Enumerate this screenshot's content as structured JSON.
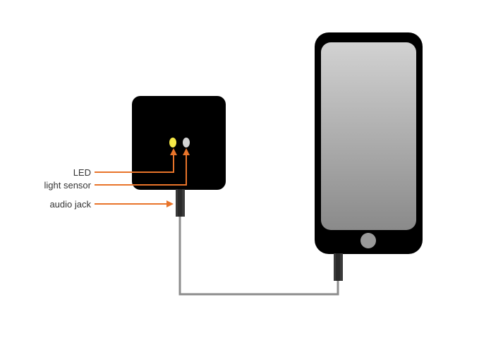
{
  "labels": {
    "led": "LED",
    "light_sensor": "light sensor",
    "audio_jack": "audio jack"
  },
  "colors": {
    "device_body": "#000000",
    "led": "#f7e948",
    "light_sensor": "#d3d3d3",
    "arrow": "#e8742a",
    "cable": "#8c8c8c",
    "plug": "#3a3a3a",
    "phone_body": "#000000",
    "screen_top": "#d2d2d2",
    "screen_bottom": "#8a8a8a",
    "home_button": "#9a9a9a",
    "label_text": "#333333"
  },
  "icons": {
    "device": "sensor-device-icon",
    "phone": "smartphone-icon"
  }
}
